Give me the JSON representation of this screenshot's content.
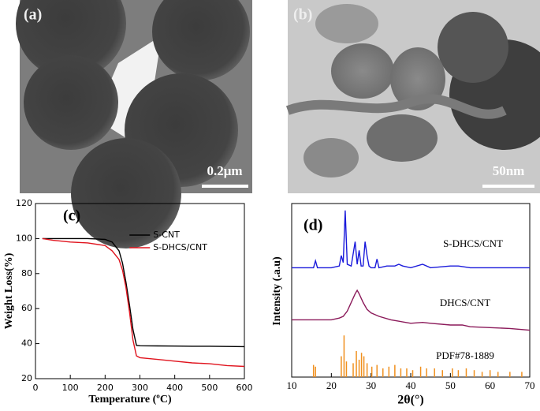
{
  "panels": [
    {
      "label": "(a)",
      "scale_bar": "0.2μm"
    },
    {
      "label": "(b)",
      "scale_bar": "50nm"
    }
  ],
  "chart_data": [
    {
      "type": "line",
      "label": "(c)",
      "xlabel": "Temperature (ºC)",
      "ylabel": "Weight Loss(%)",
      "x": [
        20,
        50,
        100,
        150,
        200,
        220,
        240,
        250,
        260,
        270,
        280,
        290,
        300,
        350,
        400,
        450,
        500,
        550,
        600
      ],
      "series": [
        {
          "name": "S-CNT",
          "color": "#000000",
          "values": [
            100,
            100,
            100,
            100,
            99.5,
            98,
            93,
            86,
            75,
            62,
            48,
            39,
            38.8,
            38.7,
            38.6,
            38.5,
            38.5,
            38.4,
            38.3
          ]
        },
        {
          "name": "S-DHCS/CNT",
          "color": "#e0141e",
          "values": [
            100,
            99,
            98,
            97.5,
            96,
            93,
            88,
            82,
            72,
            58,
            42,
            33,
            32,
            31,
            30,
            29,
            28.5,
            27.5,
            27
          ]
        }
      ],
      "xlim": [
        0,
        600
      ],
      "xticks": [
        0,
        100,
        200,
        300,
        400,
        500,
        600
      ],
      "ylim": [
        20,
        120
      ],
      "yticks": [
        20,
        40,
        60,
        80,
        100,
        120
      ],
      "legend": "upper right"
    },
    {
      "type": "line",
      "label": "(d)",
      "xlabel": "2θ(°)",
      "ylabel": "Intensity (.a.u)",
      "series": [
        {
          "name": "S-DHCS/CNT",
          "color": "#1a1adb",
          "x": [
            10,
            12,
            14,
            15.5,
            16,
            16.5,
            18,
            20,
            22,
            22.5,
            23,
            23.5,
            24,
            25,
            26,
            26.5,
            27,
            27.5,
            28,
            28.5,
            29,
            29.5,
            30,
            31,
            31.5,
            32,
            34,
            36,
            37,
            38,
            40,
            43,
            45,
            50,
            52,
            55,
            60,
            65,
            70
          ],
          "values": [
            63,
            63,
            63,
            63,
            67,
            63,
            63,
            63,
            64,
            70,
            66,
            96,
            65,
            64,
            78,
            65,
            73,
            64,
            64,
            78,
            70,
            64,
            63,
            63,
            68,
            63,
            64,
            64,
            65,
            64,
            63,
            65,
            63,
            64,
            64,
            63,
            63,
            63,
            63
          ]
        },
        {
          "name": "DHCS/CNT",
          "color": "#8b1a5a",
          "x": [
            10,
            14,
            18,
            20,
            22,
            23,
            24,
            25,
            26,
            26.5,
            27,
            28,
            29,
            30,
            32,
            35,
            40,
            43,
            45,
            50,
            53,
            55,
            60,
            65,
            70
          ],
          "values": [
            33,
            33,
            33,
            33,
            34,
            35,
            38,
            43,
            48,
            50,
            48,
            43,
            39,
            37,
            35,
            33,
            31,
            31.5,
            31,
            30,
            30,
            29,
            28.5,
            28,
            27
          ]
        },
        {
          "name": "PDF#78-1889",
          "color": "#f0901e",
          "style": "stem",
          "x": [
            15.5,
            16,
            22.5,
            23.2,
            23.8,
            25.5,
            26.3,
            27,
            27.6,
            28.2,
            29,
            30.2,
            31.5,
            33,
            34.5,
            36,
            37.5,
            39,
            40.5,
            42.5,
            44,
            46,
            48,
            50.5,
            52,
            54,
            56,
            58,
            60,
            62,
            65,
            68
          ],
          "values": [
            7,
            6,
            12,
            24,
            9,
            8,
            15,
            10,
            14,
            12,
            8,
            6,
            7,
            5,
            6,
            7,
            5,
            5,
            4,
            6,
            5,
            5,
            4,
            5,
            4,
            5,
            4,
            3,
            4,
            3,
            3,
            3
          ]
        }
      ],
      "xlim": [
        10,
        70
      ],
      "xticks": [
        10,
        20,
        30,
        40,
        50,
        60,
        70
      ],
      "ylim": [
        0,
        100
      ]
    }
  ]
}
